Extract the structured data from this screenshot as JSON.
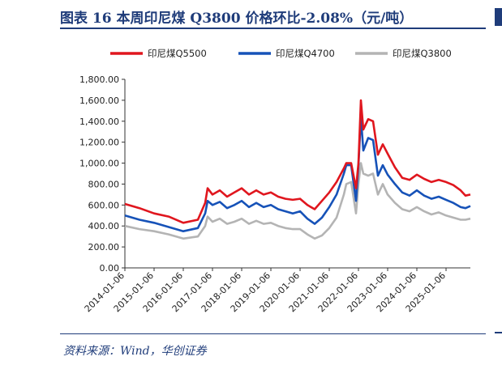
{
  "header": {
    "title": "图表 16   本周印尼煤 Q3800 价格环比-2.08%（元/吨）"
  },
  "footer": {
    "source": "资料来源：Wind，华创证券"
  },
  "colors": {
    "accent": "#1f3c7a",
    "q5500": "#e0161e",
    "q4700": "#1652b8",
    "q3800": "#b4b4b4"
  },
  "chart_data": {
    "type": "line",
    "title": "",
    "xlabel": "",
    "ylabel": "",
    "ylim": [
      0,
      1800
    ],
    "yticks": [
      "0.00",
      "200.00",
      "400.00",
      "600.00",
      "800.00",
      "1,000.00",
      "1,200.00",
      "1,400.00",
      "1,600.00",
      "1,800.00"
    ],
    "xticks": [
      "2014-01-06",
      "2015-01-06",
      "2016-01-06",
      "2017-01-06",
      "2018-01-06",
      "2019-01-06",
      "2020-01-06",
      "2021-01-06",
      "2022-01-06",
      "2023-01-06",
      "2024-01-06",
      "2025-01-06"
    ],
    "legend_position": "top",
    "grid": false,
    "x": [
      "2014-01",
      "2014-07",
      "2015-01",
      "2015-07",
      "2016-01",
      "2016-07",
      "2016-10",
      "2016-11",
      "2017-01",
      "2017-04",
      "2017-07",
      "2017-10",
      "2018-01",
      "2018-04",
      "2018-07",
      "2018-10",
      "2019-01",
      "2019-04",
      "2019-07",
      "2019-10",
      "2020-01",
      "2020-04",
      "2020-07",
      "2020-10",
      "2021-01",
      "2021-04",
      "2021-07",
      "2021-08",
      "2021-10",
      "2021-12",
      "2022-01",
      "2022-02",
      "2022-03",
      "2022-05",
      "2022-07",
      "2022-09",
      "2022-11",
      "2023-01",
      "2023-04",
      "2023-07",
      "2023-10",
      "2024-01",
      "2024-04",
      "2024-07",
      "2024-10",
      "2025-01",
      "2025-04",
      "2025-07",
      "2025-09",
      "2025-11"
    ],
    "series": [
      {
        "name": "印尼煤Q5500",
        "values": [
          610,
          570,
          520,
          490,
          430,
          460,
          620,
          760,
          700,
          740,
          680,
          720,
          760,
          700,
          740,
          700,
          720,
          680,
          660,
          650,
          660,
          600,
          560,
          640,
          720,
          820,
          950,
          1000,
          1000,
          760,
          1000,
          1600,
          1320,
          1420,
          1400,
          1080,
          1180,
          1090,
          960,
          860,
          840,
          890,
          850,
          820,
          840,
          820,
          790,
          740,
          690,
          700
        ]
      },
      {
        "name": "印尼煤Q4700",
        "values": [
          500,
          460,
          430,
          390,
          350,
          380,
          520,
          640,
          600,
          630,
          570,
          600,
          640,
          580,
          620,
          580,
          600,
          560,
          540,
          520,
          540,
          470,
          420,
          480,
          580,
          700,
          900,
          980,
          980,
          640,
          980,
          1440,
          1120,
          1240,
          1220,
          880,
          980,
          890,
          800,
          720,
          690,
          740,
          690,
          660,
          680,
          650,
          620,
          580,
          570,
          590
        ]
      },
      {
        "name": "印尼煤Q3800",
        "values": [
          400,
          370,
          350,
          320,
          280,
          300,
          400,
          490,
          440,
          470,
          420,
          440,
          470,
          420,
          450,
          420,
          430,
          400,
          380,
          370,
          370,
          320,
          280,
          310,
          380,
          480,
          700,
          800,
          820,
          520,
          800,
          1000,
          900,
          880,
          900,
          700,
          800,
          700,
          620,
          560,
          540,
          580,
          540,
          510,
          530,
          500,
          480,
          460,
          460,
          470
        ]
      }
    ]
  }
}
